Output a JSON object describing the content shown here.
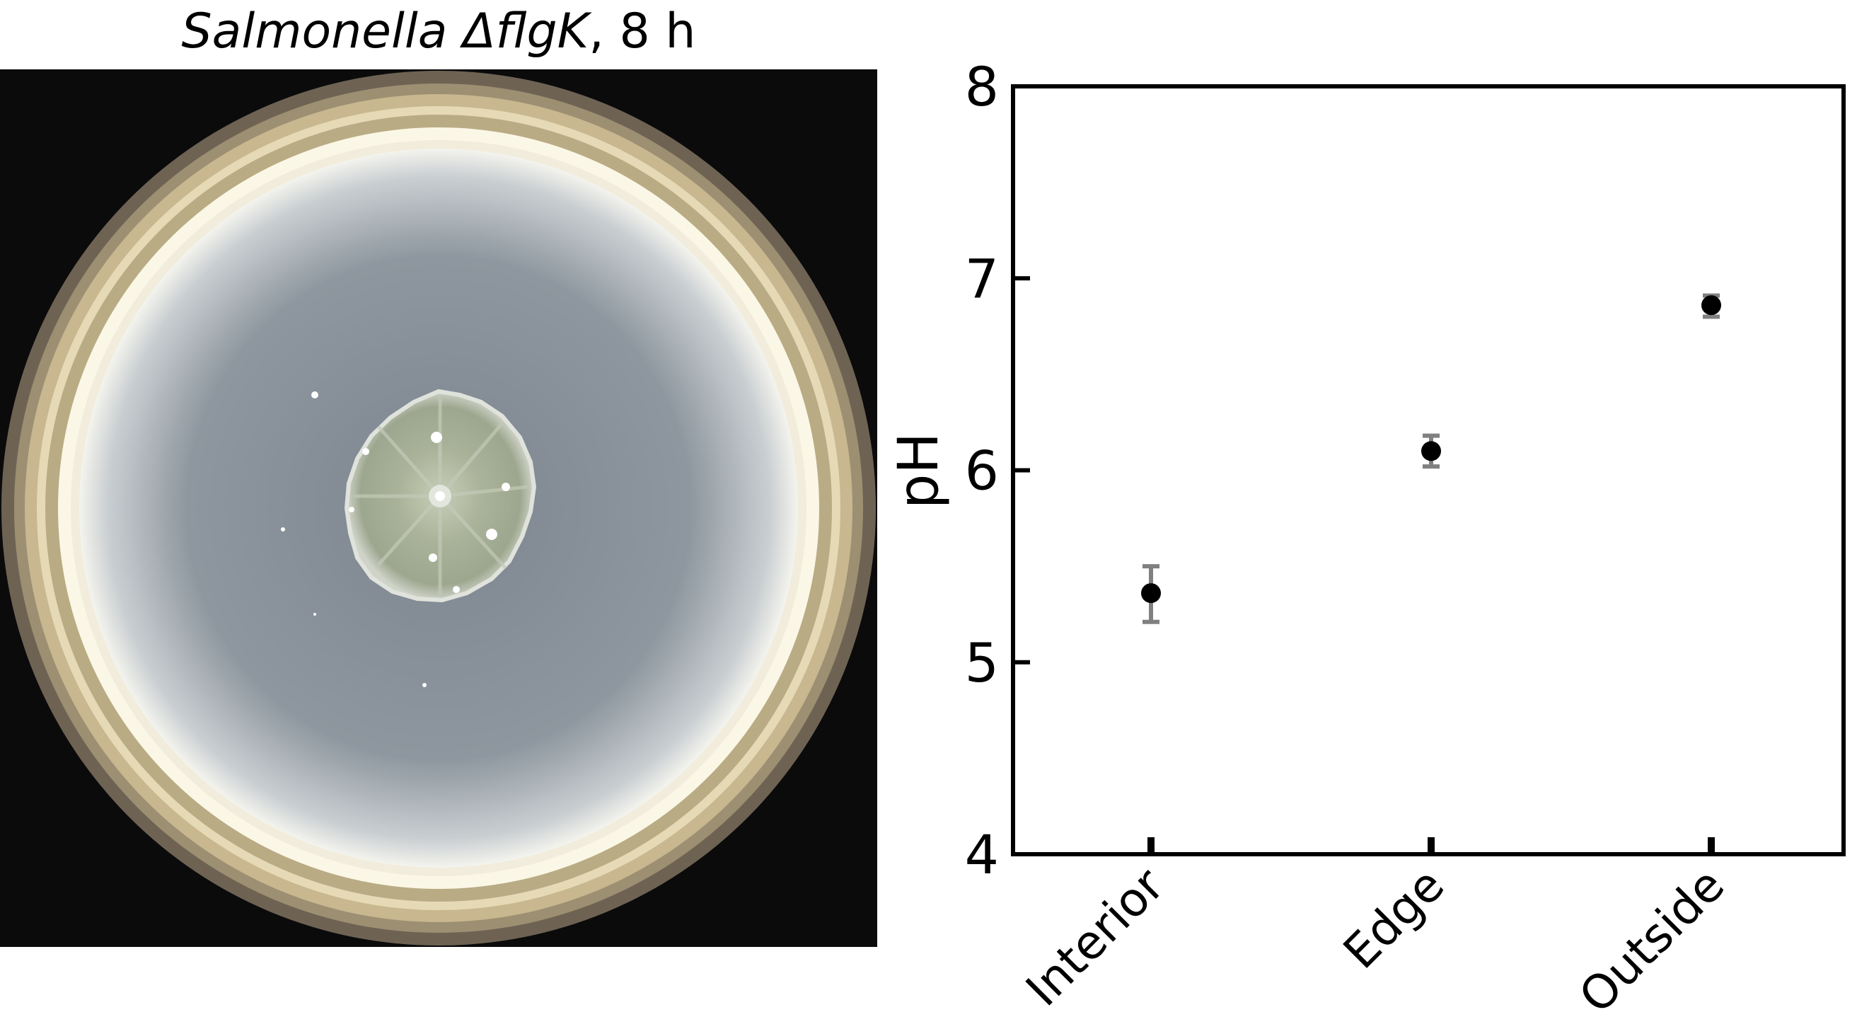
{
  "photo_panel": {
    "title_italic": "Salmonella ΔflgK",
    "title_rest": ", 8 h"
  },
  "chart_data": {
    "type": "scatter",
    "title": "",
    "xlabel": "",
    "ylabel": "pH",
    "categories": [
      "Interior",
      "Edge",
      "Outside"
    ],
    "values": [
      5.36,
      6.1,
      6.86
    ],
    "error_low": [
      5.21,
      6.02,
      6.8
    ],
    "error_high": [
      5.5,
      6.18,
      6.91
    ],
    "ylim": [
      4,
      8
    ],
    "yticks": [
      4,
      5,
      6,
      7,
      8
    ],
    "grid": false,
    "legend": "none",
    "point_color": "#000000",
    "errorbar_color": "#808080"
  }
}
